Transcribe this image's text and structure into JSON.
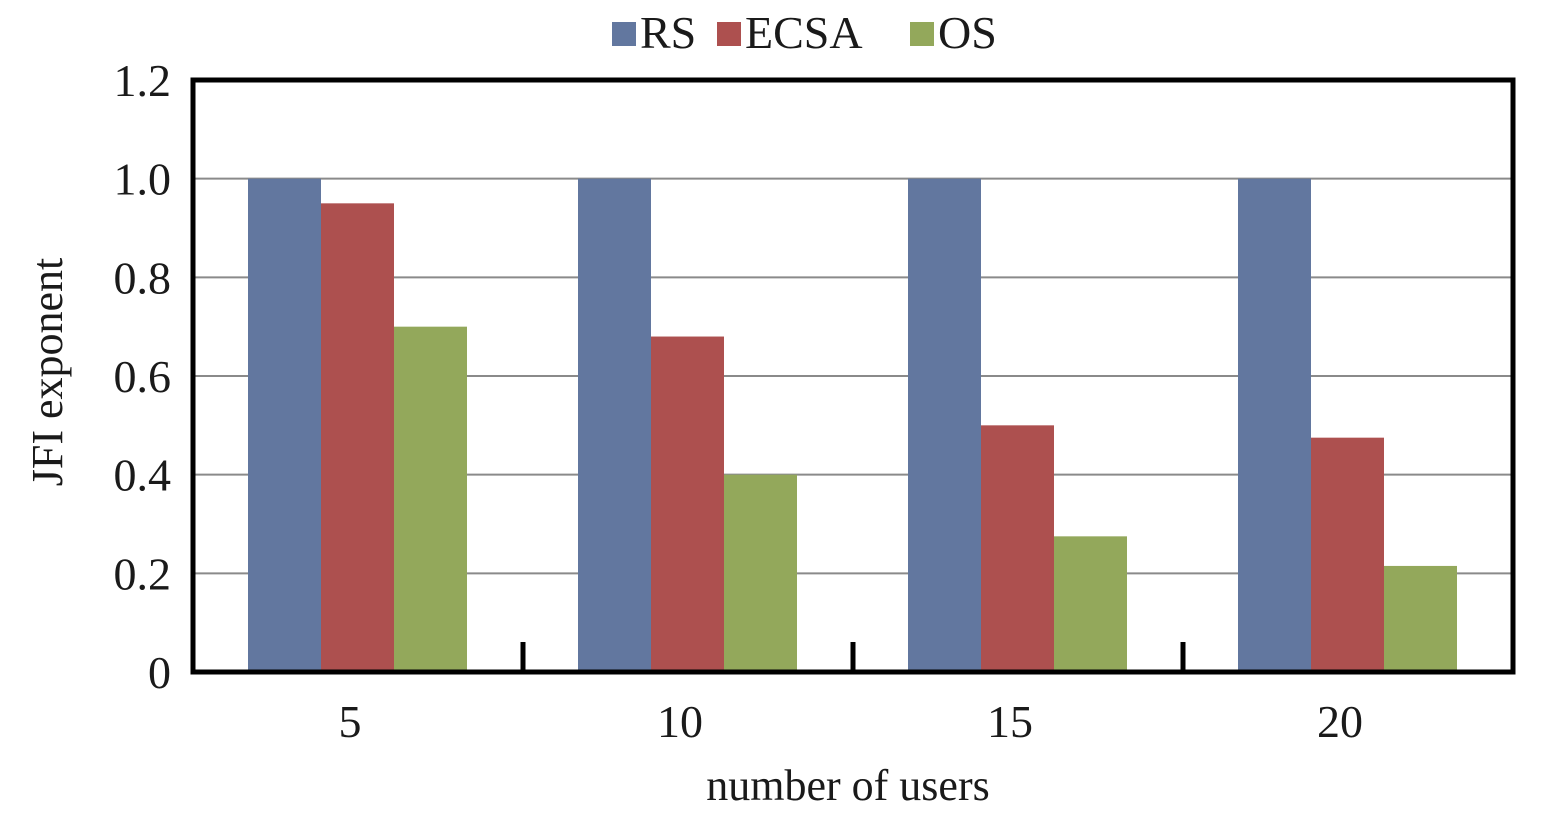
{
  "chart_data": {
    "type": "bar",
    "title": "",
    "xlabel": "number of users",
    "ylabel": "JFI exponent",
    "categories": [
      "5",
      "10",
      "15",
      "20"
    ],
    "ylim": [
      0,
      1.2
    ],
    "yticks": [
      "0",
      "0.2",
      "0.4",
      "0.6",
      "0.8",
      "1.0",
      "1.2"
    ],
    "ytick_values": [
      0,
      0.2,
      0.4,
      0.6,
      0.8,
      1.0,
      1.2
    ],
    "grid": true,
    "legend_position": "top-center",
    "series": [
      {
        "name": "RS",
        "color": "#62779f",
        "values": [
          1.0,
          1.0,
          1.0,
          1.0
        ]
      },
      {
        "name": "ECSA",
        "color": "#ad504f",
        "values": [
          0.95,
          0.68,
          0.5,
          0.475
        ]
      },
      {
        "name": "OS",
        "color": "#93a85b",
        "values": [
          0.7,
          0.4,
          0.275,
          0.215
        ]
      }
    ]
  }
}
